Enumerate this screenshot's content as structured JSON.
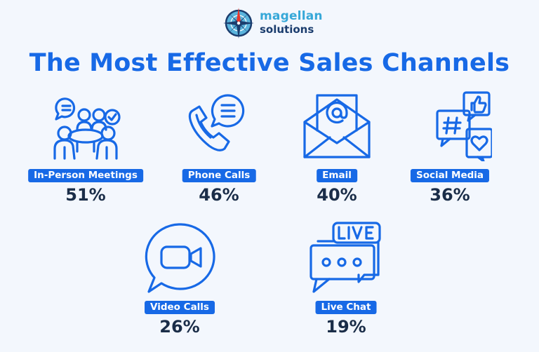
{
  "logo": {
    "line1": "magellan",
    "line2": "solutions",
    "icon": "compass-rose-icon"
  },
  "title": "The Most Effective Sales Channels",
  "colors": {
    "accent": "#1769e6",
    "text_dark": "#1a2d48",
    "background": "#f3f7fd",
    "logo_blue": "#36a8d8",
    "logo_navy": "#1b3d6e",
    "compass_red": "#e8352b"
  },
  "channels": [
    {
      "label": "In-Person Meetings",
      "value": "51%",
      "icon": "meeting-table-icon"
    },
    {
      "label": "Phone Calls",
      "value": "46%",
      "icon": "phone-chat-icon"
    },
    {
      "label": "Email",
      "value": "40%",
      "icon": "envelope-icon"
    },
    {
      "label": "Social Media",
      "value": "36%",
      "icon": "social-bubbles-icon"
    },
    {
      "label": "Video Calls",
      "value": "26%",
      "icon": "video-camera-icon"
    },
    {
      "label": "Live Chat",
      "value": "19%",
      "icon": "live-chat-icon"
    }
  ]
}
